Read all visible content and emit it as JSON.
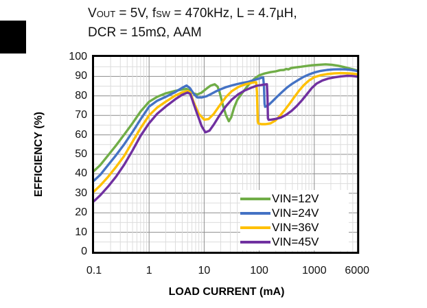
{
  "title": {
    "prefix_v": "V",
    "sub_vout": "OUT",
    "mid1": " = 5V, f",
    "sub_fsw": "SW",
    "rest1": " = 470kHz, L = 4.7µH,",
    "line2": "DCR = 15mΩ, AAM"
  },
  "chart_data": {
    "type": "line",
    "title": "VOUT = 5V, fSW = 470kHz, L = 4.7µH, DCR = 15mΩ, AAM",
    "xlabel": "LOAD CURRENT (mA)",
    "ylabel": "EFFICIENCY (%)",
    "x_scale": "log",
    "xlim": [
      0.1,
      6000
    ],
    "ylim": [
      0,
      100
    ],
    "grid": {
      "major_color": "#8C8C8C",
      "minor_color": "#DCDCDC",
      "minor_y_step": 5,
      "major_y_step": 10
    },
    "legend_position": "inside-bottom-right",
    "xticks": [
      {
        "value": 0.1,
        "label": "0.1"
      },
      {
        "value": 1,
        "label": "1"
      },
      {
        "value": 10,
        "label": "10"
      },
      {
        "value": 100,
        "label": "100"
      },
      {
        "value": 1000,
        "label": "1000"
      },
      {
        "value": 6000,
        "label": "6000"
      }
    ],
    "yticks": [
      {
        "value": 0,
        "label": "0"
      },
      {
        "value": 10,
        "label": "10"
      },
      {
        "value": 20,
        "label": "20"
      },
      {
        "value": 30,
        "label": "30"
      },
      {
        "value": 40,
        "label": "40"
      },
      {
        "value": 50,
        "label": "50"
      },
      {
        "value": 60,
        "label": "60"
      },
      {
        "value": 70,
        "label": "70"
      },
      {
        "value": 80,
        "label": "80"
      },
      {
        "value": 90,
        "label": "90"
      },
      {
        "value": 100,
        "label": "100"
      }
    ],
    "series": [
      {
        "name": "VIN=12V",
        "color": "#70AD47",
        "points": [
          [
            0.1,
            41.5
          ],
          [
            0.13,
            44.5
          ],
          [
            0.18,
            49.5
          ],
          [
            0.25,
            54.5
          ],
          [
            0.35,
            60
          ],
          [
            0.5,
            66
          ],
          [
            0.7,
            72
          ],
          [
            1,
            77
          ],
          [
            1.4,
            79.5
          ],
          [
            2,
            81.3
          ],
          [
            3,
            82.6
          ],
          [
            4,
            83.3
          ],
          [
            4.8,
            83.6
          ],
          [
            5.5,
            82.6
          ],
          [
            6.5,
            81.2
          ],
          [
            7.5,
            80.7
          ],
          [
            9,
            81.7
          ],
          [
            11,
            83.7
          ],
          [
            13,
            85.2
          ],
          [
            15.5,
            86
          ],
          [
            17.5,
            84.8
          ],
          [
            19,
            82
          ],
          [
            22,
            75
          ],
          [
            25,
            70
          ],
          [
            28,
            67
          ],
          [
            31,
            69
          ],
          [
            35,
            74
          ],
          [
            40,
            78
          ],
          [
            47,
            80.8
          ],
          [
            55,
            83.3
          ],
          [
            65,
            86
          ],
          [
            80,
            88.6
          ],
          [
            100,
            90.6
          ],
          [
            125,
            91.5
          ],
          [
            160,
            92.2
          ],
          [
            200,
            92.6
          ],
          [
            240,
            93.2
          ],
          [
            280,
            93.3
          ],
          [
            310,
            93.8
          ],
          [
            340,
            93.6
          ],
          [
            380,
            94.3
          ],
          [
            450,
            94.6
          ],
          [
            550,
            94.9
          ],
          [
            700,
            95.3
          ],
          [
            900,
            95.7
          ],
          [
            1200,
            96
          ],
          [
            1600,
            96.2
          ],
          [
            2100,
            96
          ],
          [
            2700,
            95.5
          ],
          [
            3500,
            94.8
          ],
          [
            4500,
            94
          ],
          [
            5300,
            93.5
          ],
          [
            6000,
            93
          ]
        ]
      },
      {
        "name": "VIN=24V",
        "color": "#4472C4",
        "points": [
          [
            0.1,
            36.5
          ],
          [
            0.13,
            39.5
          ],
          [
            0.18,
            44.5
          ],
          [
            0.25,
            49.5
          ],
          [
            0.35,
            55
          ],
          [
            0.5,
            61.5
          ],
          [
            0.7,
            68
          ],
          [
            1,
            74.5
          ],
          [
            1.4,
            77.5
          ],
          [
            2,
            79.5
          ],
          [
            3,
            82
          ],
          [
            4,
            84.2
          ],
          [
            4.8,
            85.3
          ],
          [
            5.5,
            84
          ],
          [
            6.5,
            81
          ],
          [
            7.5,
            79.2
          ],
          [
            9,
            79.2
          ],
          [
            11,
            79.8
          ],
          [
            13,
            80.8
          ],
          [
            16,
            82.2
          ],
          [
            20,
            83.4
          ],
          [
            25,
            84.5
          ],
          [
            32,
            85.4
          ],
          [
            40,
            86.1
          ],
          [
            50,
            86.7
          ],
          [
            63,
            87.2
          ],
          [
            80,
            88.1
          ],
          [
            100,
            88.9
          ],
          [
            110,
            89.3
          ],
          [
            118,
            89.5
          ],
          [
            122,
            85
          ],
          [
            125,
            76
          ],
          [
            128,
            74.4
          ],
          [
            135,
            74.7
          ],
          [
            150,
            75.5
          ],
          [
            175,
            77.3
          ],
          [
            210,
            79.5
          ],
          [
            260,
            82
          ],
          [
            320,
            84.3
          ],
          [
            400,
            86.3
          ],
          [
            500,
            88
          ],
          [
            630,
            89.7
          ],
          [
            800,
            91
          ],
          [
            1000,
            92
          ],
          [
            1300,
            92.8
          ],
          [
            1700,
            93.3
          ],
          [
            2200,
            93.6
          ],
          [
            2900,
            93.7
          ],
          [
            3800,
            93.6
          ],
          [
            4800,
            93.3
          ],
          [
            6000,
            92.8
          ]
        ]
      },
      {
        "name": "VIN=36V",
        "color": "#FFC000",
        "points": [
          [
            0.1,
            31
          ],
          [
            0.13,
            34
          ],
          [
            0.18,
            38.5
          ],
          [
            0.25,
            43.5
          ],
          [
            0.35,
            49
          ],
          [
            0.5,
            56.5
          ],
          [
            0.7,
            63.5
          ],
          [
            1,
            70
          ],
          [
            1.4,
            74
          ],
          [
            2,
            77
          ],
          [
            3,
            80.2
          ],
          [
            4,
            81.8
          ],
          [
            5,
            82.5
          ],
          [
            5.6,
            81.8
          ],
          [
            6.5,
            76.5
          ],
          [
            8,
            70.8
          ],
          [
            10,
            67.8
          ],
          [
            12,
            68.1
          ],
          [
            15,
            70.8
          ],
          [
            19,
            75
          ],
          [
            25,
            79.5
          ],
          [
            32,
            82.5
          ],
          [
            42,
            84.6
          ],
          [
            54,
            85.8
          ],
          [
            68,
            86.5
          ],
          [
            82,
            87
          ],
          [
            88,
            87
          ],
          [
            91,
            82
          ],
          [
            94,
            67
          ],
          [
            97,
            65.8
          ],
          [
            110,
            65.5
          ],
          [
            130,
            65.5
          ],
          [
            160,
            65.9
          ],
          [
            195,
            67.3
          ],
          [
            235,
            69.6
          ],
          [
            290,
            72.7
          ],
          [
            360,
            76.2
          ],
          [
            440,
            79.6
          ],
          [
            530,
            82.7
          ],
          [
            650,
            85.6
          ],
          [
            800,
            87.9
          ],
          [
            1000,
            89.6
          ],
          [
            1300,
            90.6
          ],
          [
            1700,
            91.2
          ],
          [
            2300,
            91.6
          ],
          [
            3200,
            91.7
          ],
          [
            4300,
            91.6
          ],
          [
            5200,
            91.4
          ],
          [
            6000,
            91.1
          ]
        ]
      },
      {
        "name": "VIN=45V",
        "color": "#7030A0",
        "points": [
          [
            0.1,
            26
          ],
          [
            0.13,
            29
          ],
          [
            0.18,
            33.5
          ],
          [
            0.25,
            38.5
          ],
          [
            0.35,
            44.5
          ],
          [
            0.5,
            52
          ],
          [
            0.7,
            59.5
          ],
          [
            1,
            66
          ],
          [
            1.4,
            70.8
          ],
          [
            2,
            74.5
          ],
          [
            3,
            78.3
          ],
          [
            4,
            80.6
          ],
          [
            5,
            81.7
          ],
          [
            5.6,
            81
          ],
          [
            7,
            73
          ],
          [
            9,
            64.5
          ],
          [
            10.5,
            61.3
          ],
          [
            12.5,
            62.2
          ],
          [
            15,
            65.3
          ],
          [
            19,
            70
          ],
          [
            25,
            74.8
          ],
          [
            32,
            78.2
          ],
          [
            42,
            80.9
          ],
          [
            54,
            82.7
          ],
          [
            70,
            84.1
          ],
          [
            90,
            85.2
          ],
          [
            110,
            85.6
          ],
          [
            130,
            85.9
          ],
          [
            138,
            86
          ],
          [
            141,
            80
          ],
          [
            144,
            68.5
          ],
          [
            148,
            67.7
          ],
          [
            165,
            67.8
          ],
          [
            200,
            68.2
          ],
          [
            250,
            68.9
          ],
          [
            310,
            70.3
          ],
          [
            390,
            72.4
          ],
          [
            480,
            74.8
          ],
          [
            600,
            77.8
          ],
          [
            740,
            81
          ],
          [
            900,
            84
          ],
          [
            1100,
            86.3
          ],
          [
            1400,
            87.9
          ],
          [
            1800,
            88.9
          ],
          [
            2300,
            89.5
          ],
          [
            3000,
            90
          ],
          [
            4000,
            90.3
          ],
          [
            5000,
            90.2
          ],
          [
            6000,
            89.9
          ]
        ]
      }
    ]
  }
}
